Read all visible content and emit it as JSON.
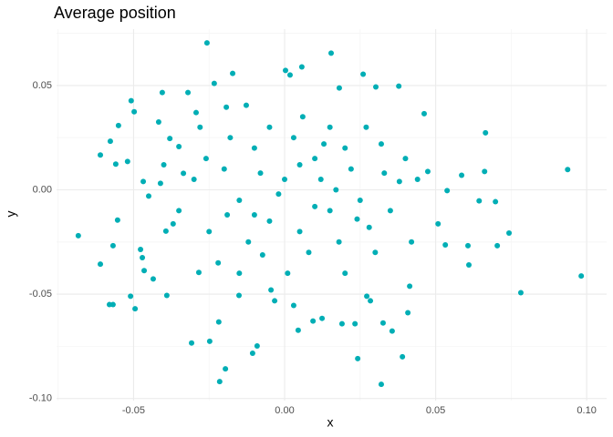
{
  "chart_data": {
    "type": "scatter",
    "title": "Average position",
    "x_label": "x",
    "y_label": "y",
    "color": "#00aeb5",
    "xlim": [
      -0.0755,
      0.1066
    ],
    "ylim": [
      -0.101,
      0.077
    ],
    "xticks": [
      -0.05,
      {
        "value": 0,
        "label": "0.00"
      },
      0.05,
      {
        "value": 0.1,
        "label": "0.10"
      }
    ],
    "yticks": [
      {
        "value": -0.1,
        "label": "-0.10"
      },
      -0.05,
      {
        "value": 0,
        "label": "0.00"
      },
      0.05
    ],
    "xminor_ticks": [
      -0.075,
      -0.025,
      0.025,
      0.075
    ],
    "yminor_ticks": [
      -0.075,
      -0.025,
      0.025,
      0.075
    ],
    "grid": true,
    "x": [
      -0.0683,
      -0.061,
      -0.061,
      -0.0577,
      -0.0568,
      -0.058,
      -0.0568,
      -0.0559,
      -0.055,
      -0.0553,
      -0.052,
      -0.0508,
      -0.0498,
      -0.051,
      -0.0495,
      -0.0477,
      -0.0471,
      -0.0465,
      -0.0468,
      -0.0435,
      -0.0417,
      -0.0411,
      -0.0405,
      -0.039,
      -0.0393,
      -0.038,
      -0.0369,
      -0.035,
      -0.0335,
      -0.032,
      -0.0308,
      -0.0293,
      -0.0284,
      -0.0257,
      -0.0248,
      -0.0233,
      -0.0218,
      -0.0215,
      -0.0196,
      -0.0193,
      -0.0172,
      -0.0151,
      -0.0127,
      -0.0106,
      -0.0091,
      -0.0073,
      -0.0045,
      -0.0033,
      0.0003,
      0.0018,
      0.0057,
      0.003,
      0.0045,
      0.0094,
      0.0124,
      0.0154,
      0.0181,
      0.019,
      0.0233,
      0.0242,
      0.026,
      0.0272,
      0.0284,
      0.0302,
      0.032,
      0.0326,
      0.0356,
      0.0378,
      0.039,
      0.0408,
      0.0414,
      0.0462,
      0.0474,
      0.0508,
      0.0538,
      0.0532,
      0.0586,
      0.0607,
      0.061,
      0.0644,
      0.0665,
      0.0662,
      0.0698,
      0.0704,
      0.0743,
      0.0782,
      0.0937,
      0.0982,
      -0.02,
      -0.015,
      -0.01,
      -0.005,
      0,
      0.005,
      0.01,
      0.015,
      0.02,
      0.025,
      -0.025,
      -0.018,
      -0.012,
      -0.008,
      0.003,
      0.008,
      0.012,
      0.018,
      0.022,
      0.028,
      0.032,
      0.035,
      0.04,
      -0.03,
      -0.035,
      -0.028,
      -0.022,
      -0.005,
      0.006,
      0.015,
      0.027,
      0.038,
      0.042,
      -0.04,
      -0.045,
      0.001,
      0.02,
      -0.015,
      0.03,
      0.01,
      -0.002,
      0.017,
      0.024,
      -0.026,
      0.044,
      -0.01,
      0.005,
      0.013,
      -0.019,
      0.033
    ],
    "values": [
      -0.022,
      0.0167,
      -0.0356,
      0.0233,
      -0.0268,
      -0.055,
      -0.055,
      0.0123,
      0.0308,
      -0.0145,
      0.0136,
      0.0427,
      0.0374,
      -0.051,
      -0.057,
      -0.0286,
      -0.0325,
      -0.0387,
      0.004,
      -0.0427,
      0.0325,
      0.0031,
      0.0466,
      -0.0506,
      -0.0198,
      0.0246,
      -0.0163,
      0.0207,
      0.0079,
      0.0466,
      -0.0734,
      0.037,
      -0.0396,
      0.0704,
      -0.0726,
      0.051,
      -0.0633,
      -0.0919,
      -0.0858,
      0.0396,
      0.0558,
      -0.0506,
      0.0405,
      -0.0783,
      -0.0748,
      -0.0312,
      -0.048,
      -0.0532,
      0.0572,
      0.055,
      0.0589,
      -0.0554,
      -0.0673,
      -0.0629,
      -0.0616,
      0.0655,
      0.0488,
      -0.0642,
      -0.0642,
      -0.0809,
      0.0554,
      -0.051,
      -0.0532,
      0.0493,
      -0.0932,
      -0.0638,
      -0.0677,
      0.0497,
      -0.08,
      -0.0589,
      -0.0462,
      0.0365,
      0.0088,
      -0.0163,
      -0.0004,
      -0.0264,
      0.007,
      -0.0268,
      -0.036,
      -0.0053,
      0.0273,
      0.0088,
      -0.0057,
      -0.0268,
      -0.0207,
      -0.0493,
      0.0097,
      -0.0413,
      0.01,
      -0.005,
      0.02,
      -0.015,
      0.005,
      -0.02,
      0.015,
      -0.01,
      0.02,
      -0.005,
      -0.02,
      0.025,
      -0.025,
      0.008,
      0.025,
      -0.03,
      0.005,
      -0.025,
      0.01,
      -0.018,
      0.022,
      -0.01,
      0.015,
      0.005,
      -0.01,
      0.03,
      -0.035,
      0.03,
      0.035,
      0.03,
      0.03,
      0.004,
      -0.025,
      0.012,
      -0.003,
      -0.04,
      -0.04,
      -0.04,
      -0.03,
      -0.008,
      -0.002,
      0.0,
      -0.014,
      0.015,
      0.005,
      -0.012,
      0.012,
      0.022,
      -0.012,
      0.008
    ]
  }
}
